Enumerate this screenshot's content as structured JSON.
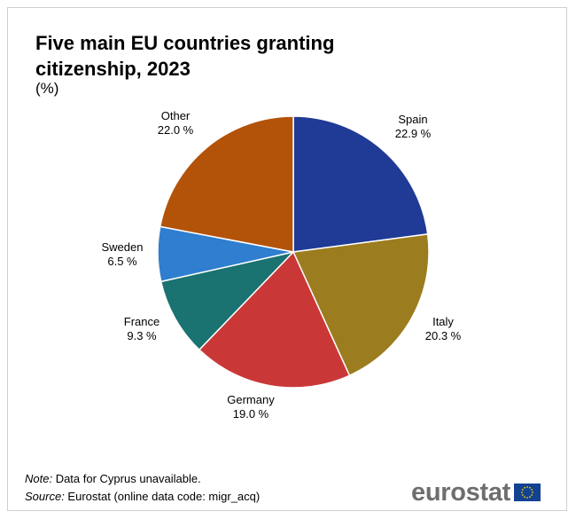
{
  "title": "Five main EU countries granting citizenship, 2023",
  "subtitle": "(%)",
  "notes": {
    "note_label": "Note:",
    "note_text": " Data for Cyprus unavailable.",
    "source_label": "Source:",
    "source_text": " Eurostat (online data code: migr_acq)"
  },
  "logo": {
    "text": "eurostat",
    "flag_color": "#134293",
    "star_color": "#f5d100"
  },
  "chart_data": {
    "type": "pie",
    "title": "Five main EU countries granting citizenship, 2023",
    "unit": "(%)",
    "slices": [
      {
        "label": "Spain",
        "value": 22.9,
        "display": "22.9 %",
        "color": "#1f3b95"
      },
      {
        "label": "Italy",
        "value": 20.3,
        "display": "20.3 %",
        "color": "#9b7d1f"
      },
      {
        "label": "Germany",
        "value": 19.0,
        "display": "19.0 %",
        "color": "#c93837"
      },
      {
        "label": "France",
        "value": 9.3,
        "display": "9.3 %",
        "color": "#1a7271"
      },
      {
        "label": "Sweden",
        "value": 6.5,
        "display": "6.5 %",
        "color": "#2f7ecf"
      },
      {
        "label": "Other",
        "value": 22.0,
        "display": "22.0 %",
        "color": "#b3530a"
      }
    ]
  }
}
